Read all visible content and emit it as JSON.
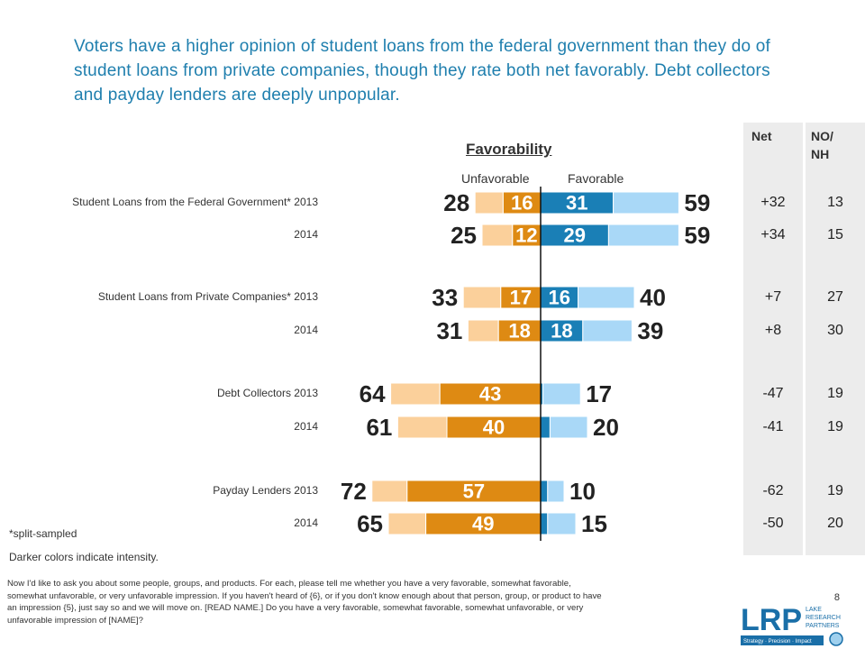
{
  "headline": "Voters have a higher opinion of student loans from the federal government than they do of student loans from private companies, though they rate both net favorably. Debt collectors and payday lenders are deeply unpopular.",
  "net_header": "Net",
  "nonh_header": "NO/ NH",
  "notes": {
    "split_sampled": "*split-sampled",
    "intensity": "Darker colors indicate intensity."
  },
  "question": "Now I'd like to ask you about some people, groups, and products. For each, please tell me whether you have a very favorable, somewhat favorable, somewhat unfavorable, or very unfavorable impression. If you haven't heard of {6}, or if you don't know enough about that person, group, or product to have an impression {5}, just say so and we will move on. [READ NAME.] Do you have a very favorable, somewhat favorable, somewhat unfavorable, or very unfavorable impression of [NAME]?",
  "page_number": "8",
  "logo": {
    "text": "LRP",
    "lines": [
      "LAKE",
      "RESEARCH",
      "PARTNERS"
    ],
    "tagline": "Strategy · Precision · Impact"
  },
  "colors": {
    "headline": "#1f7fae",
    "unfav_light": "#fbd09b",
    "unfav_dark": "#de8a13",
    "fav_dark": "#1a7fb6",
    "fav_light": "#a9d8f7",
    "panel": "#ececec"
  },
  "chart_data": {
    "type": "bar",
    "title": "Favorability",
    "left_label": "Unfavorable",
    "right_label": "Favorable",
    "rows": [
      {
        "label": "Student Loans from the Federal Government* 2013",
        "unfav_total": 28,
        "unfav_intense": 16,
        "fav_total": 59,
        "fav_intense": 31,
        "net": "+32",
        "no_nh": "13"
      },
      {
        "label": "2014",
        "unfav_total": 25,
        "unfav_intense": 12,
        "fav_total": 59,
        "fav_intense": 29,
        "net": "+34",
        "no_nh": "15"
      },
      {
        "label": "Student Loans from Private Companies* 2013",
        "unfav_total": 33,
        "unfav_intense": 17,
        "fav_total": 40,
        "fav_intense": 16,
        "net": "+7",
        "no_nh": "27"
      },
      {
        "label": "2014",
        "unfav_total": 31,
        "unfav_intense": 18,
        "fav_total": 39,
        "fav_intense": 18,
        "net": "+8",
        "no_nh": "30"
      },
      {
        "label": "Debt Collectors 2013",
        "unfav_total": 64,
        "unfav_intense": 43,
        "fav_total": 17,
        "fav_intense": 1,
        "net": "-47",
        "no_nh": "19"
      },
      {
        "label": "2014",
        "unfav_total": 61,
        "unfav_intense": 40,
        "fav_total": 20,
        "fav_intense": 4,
        "net": "-41",
        "no_nh": "19"
      },
      {
        "label": "Payday Lenders 2013",
        "unfav_total": 72,
        "unfav_intense": 57,
        "fav_total": 10,
        "fav_intense": 3,
        "net": "-62",
        "no_nh": "19"
      },
      {
        "label": "2014",
        "unfav_total": 65,
        "unfav_intense": 49,
        "fav_total": 15,
        "fav_intense": 3,
        "net": "-50",
        "no_nh": "20"
      }
    ]
  }
}
